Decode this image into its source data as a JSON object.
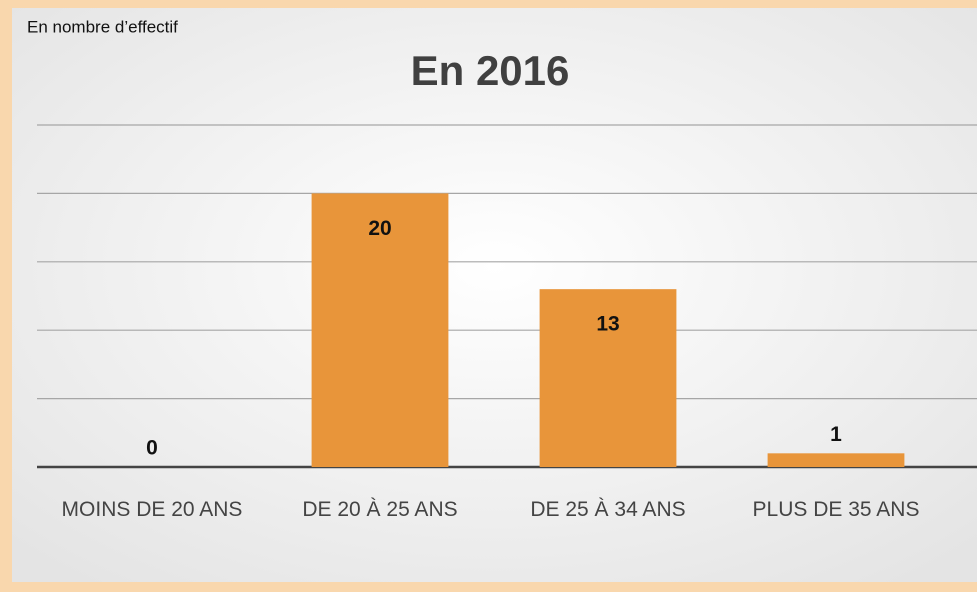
{
  "chart_data": {
    "type": "bar",
    "title": "En 2016",
    "subtitle": "En nombre d’effectif",
    "categories": [
      "MOINS DE 20 ANS",
      "DE 20 À 25 ANS",
      "DE 25 À 34 ANS",
      "PLUS DE 35 ANS"
    ],
    "values": [
      0,
      20,
      13,
      1
    ],
    "color": "#e8953a",
    "ylim": [
      0,
      25
    ],
    "yticks": [
      0,
      5,
      10,
      15,
      20,
      25
    ],
    "grid": true
  }
}
